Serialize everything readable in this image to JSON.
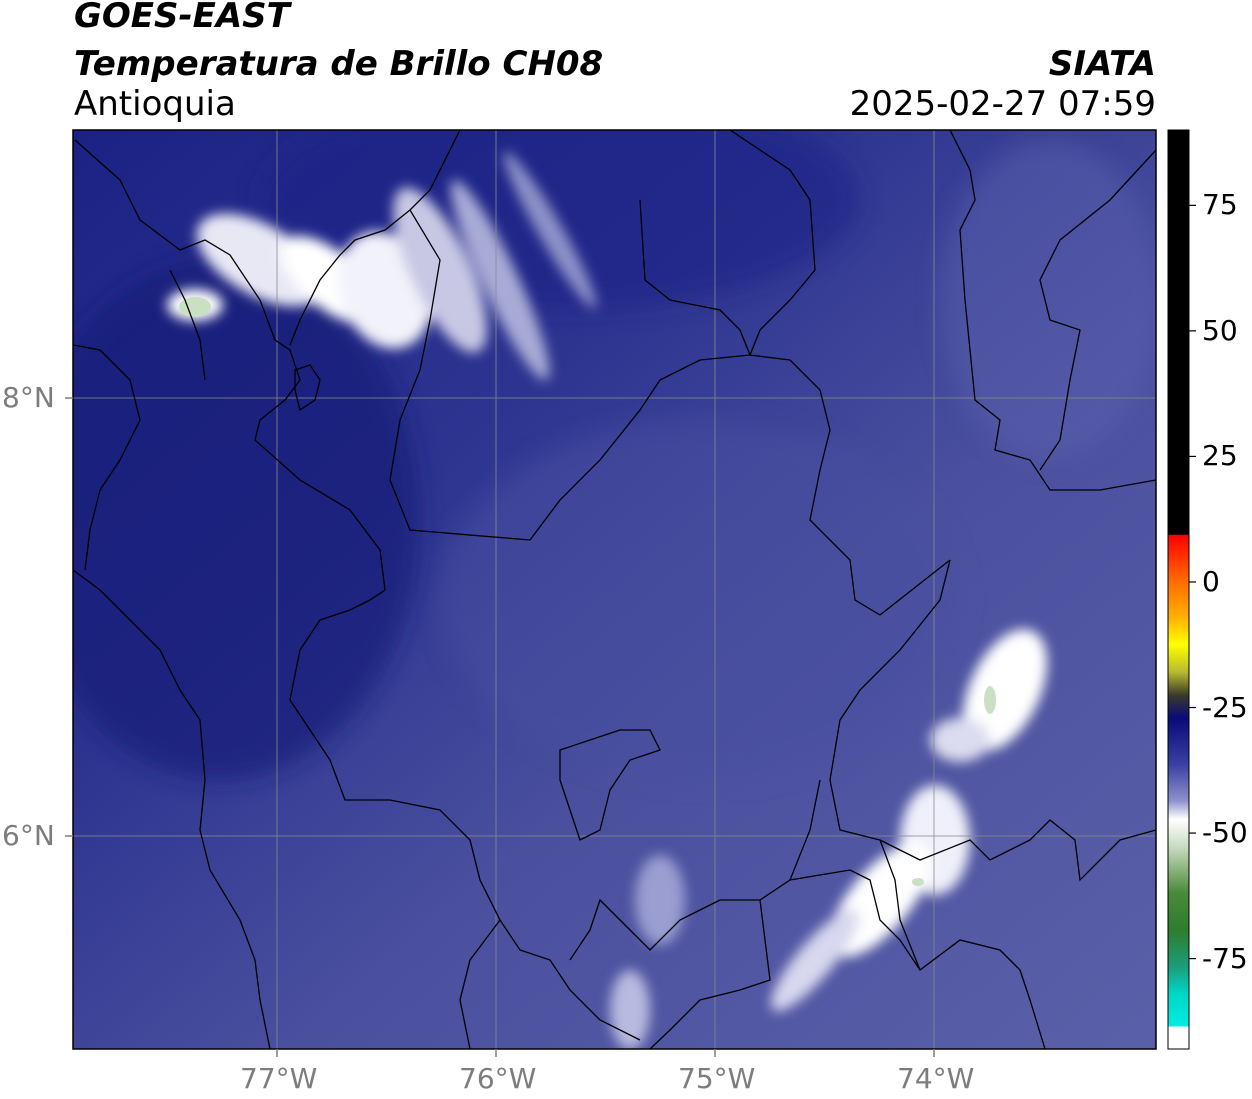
{
  "header": {
    "satellite": "GOES-EAST",
    "product": "Temperatura de Brillo CH08",
    "region": "Antioquia",
    "agency": "SIATA",
    "datetime": "2025-02-27 07:59"
  },
  "map": {
    "lat_labels": [
      "8°N",
      "6°N"
    ],
    "lon_labels": [
      "77°W",
      "76°W",
      "75°W",
      "74°W"
    ],
    "gridlines": true,
    "colors": {
      "background_dark": "#1a1f7a",
      "background_mid": "#3e4597",
      "background_light": "#5d63a8",
      "clouds": "#ffffff",
      "gridline": "#8a8a8a",
      "border": "#000000"
    }
  },
  "colorbar": {
    "tick_labels": [
      "75",
      "50",
      "25",
      "0",
      "-25",
      "-50",
      "-75"
    ],
    "tick_values": [
      75,
      50,
      25,
      0,
      -25,
      -50,
      -75
    ],
    "range": [
      -93,
      90
    ],
    "units": "",
    "colors": {
      "hot": "#000000",
      "red": "#ff0000",
      "orange": "#ff8c00",
      "yellow": "#ffff00",
      "olive": "#3a3a2a",
      "navy": "#0a0a7a",
      "lavender": "#c8c8e6",
      "white": "#ffffff",
      "green": "#2e7d2e",
      "cyan": "#00e5d6"
    }
  }
}
